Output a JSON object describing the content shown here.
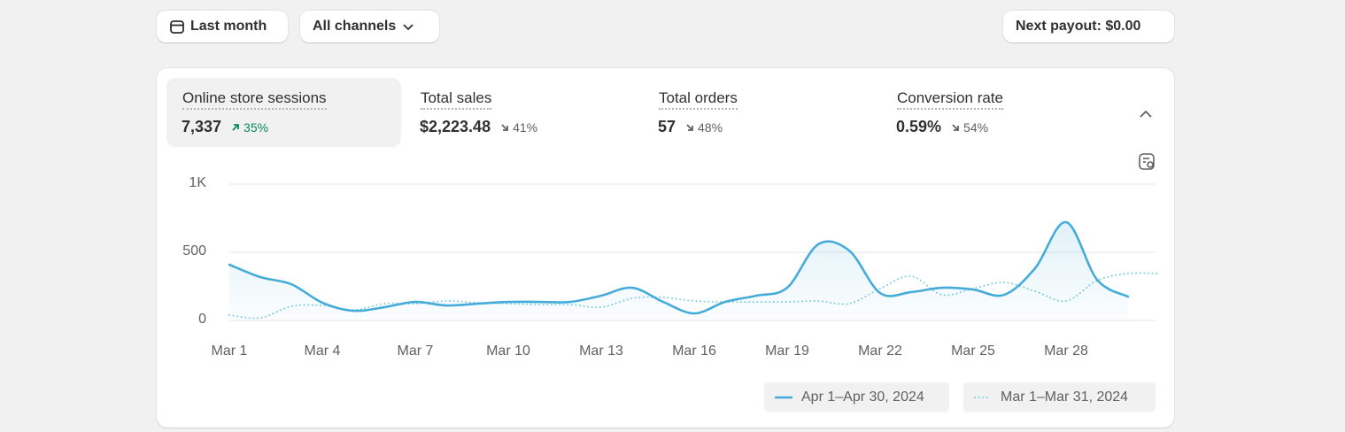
{
  "toolbar": {
    "date_button": "Last month",
    "channel_button": "All channels",
    "payout_button": "Next payout: $0.00"
  },
  "metrics": [
    {
      "title": "Online store sessions",
      "value": "7,337",
      "change": "35%",
      "direction": "up"
    },
    {
      "title": "Total sales",
      "value": "$2,223.48",
      "change": "41%",
      "direction": "down"
    },
    {
      "title": "Total orders",
      "value": "57",
      "change": "48%",
      "direction": "down"
    },
    {
      "title": "Conversion rate",
      "value": "0.59%",
      "change": "54%",
      "direction": "down"
    }
  ],
  "chart_data": {
    "type": "line",
    "categories": [
      "Mar 1",
      null,
      null,
      "Mar 4",
      null,
      null,
      "Mar 7",
      null,
      null,
      "Mar 10",
      null,
      null,
      "Mar 13",
      null,
      null,
      "Mar 16",
      null,
      null,
      "Mar 19",
      null,
      null,
      "Mar 22",
      null,
      null,
      "Mar 25",
      null,
      null,
      "Mar 28",
      null,
      null,
      null
    ],
    "series": [
      {
        "name": "Apr 1–Apr 30, 2024",
        "color": "#45acd9",
        "style": "solid",
        "fill": true,
        "values": [
          409,
          318,
          266,
          130,
          71,
          97,
          136,
          110,
          123,
          136,
          136,
          136,
          182,
          240,
          136,
          52,
          136,
          182,
          240,
          558,
          513,
          201,
          208,
          240,
          227,
          188,
          383,
          721,
          299,
          175,
          null
        ]
      },
      {
        "name": "Mar 1–Mar 31, 2024",
        "color": "#82cfe6",
        "style": "dotted",
        "fill": false,
        "values": [
          39,
          19,
          104,
          110,
          78,
          123,
          123,
          143,
          130,
          123,
          117,
          117,
          97,
          162,
          169,
          143,
          136,
          136,
          136,
          143,
          123,
          234,
          325,
          188,
          234,
          279,
          214,
          143,
          292,
          344,
          344
        ]
      }
    ],
    "ylim": [
      0,
      1000
    ],
    "yticks": [
      0,
      500,
      {
        "value": 1000,
        "label": "1K"
      }
    ],
    "grid": true
  }
}
